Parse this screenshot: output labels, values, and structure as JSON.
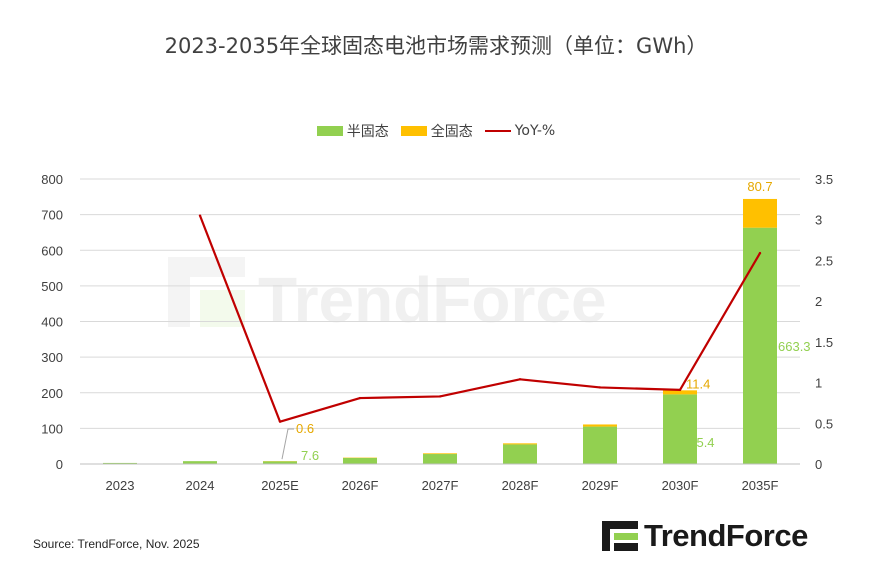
{
  "chart_data": {
    "type": "bar",
    "title": "2023-2035年全球固态电池市场需求预测（单位：GWh）",
    "categories": [
      "2023",
      "2024",
      "2025E",
      "2026F",
      "2027F",
      "2028F",
      "2029F",
      "2030F",
      "2035F"
    ],
    "series": [
      {
        "name": "半固态",
        "kind": "stacked-bar",
        "axis": "left",
        "color": "#92D050",
        "values": [
          3,
          8,
          7.6,
          17,
          28,
          55,
          105,
          195.4,
          663.3
        ]
      },
      {
        "name": "全固态",
        "kind": "stacked-bar",
        "axis": "left",
        "color": "#FFC000",
        "values": [
          0,
          0,
          0.6,
          1,
          2,
          3,
          6,
          11.4,
          80.7
        ]
      },
      {
        "name": "YoY-%",
        "kind": "line",
        "axis": "right",
        "color": "#C00000",
        "values": [
          null,
          3.05,
          0.52,
          0.81,
          0.83,
          1.04,
          0.94,
          0.91,
          2.59
        ]
      }
    ],
    "data_labels": [
      {
        "series": "全固态",
        "category": "2025E",
        "text": "0.6"
      },
      {
        "series": "半固态",
        "category": "2025E",
        "text": "7.6"
      },
      {
        "series": "全固态",
        "category": "2030F",
        "text": "11.4"
      },
      {
        "series": "半固态",
        "category": "2030F",
        "text": "195.4"
      },
      {
        "series": "全固态",
        "category": "2035F",
        "text": "80.7"
      },
      {
        "series": "半固态",
        "category": "2035F",
        "text": "663.3"
      }
    ],
    "y_left": {
      "min": 0,
      "max": 800,
      "ticks": [
        "0",
        "100",
        "200",
        "300",
        "400",
        "500",
        "600",
        "700",
        "800"
      ]
    },
    "y_right": {
      "min": 0,
      "max": 3.5,
      "ticks": [
        "0",
        "0.5",
        "1",
        "1.5",
        "2",
        "2.5",
        "3",
        "3.5"
      ]
    },
    "grid": true,
    "legend_position": "top-center"
  },
  "watermark_text": "TrendForce",
  "source": "Source: TrendForce, Nov. 2025",
  "brand": "TrendForce"
}
